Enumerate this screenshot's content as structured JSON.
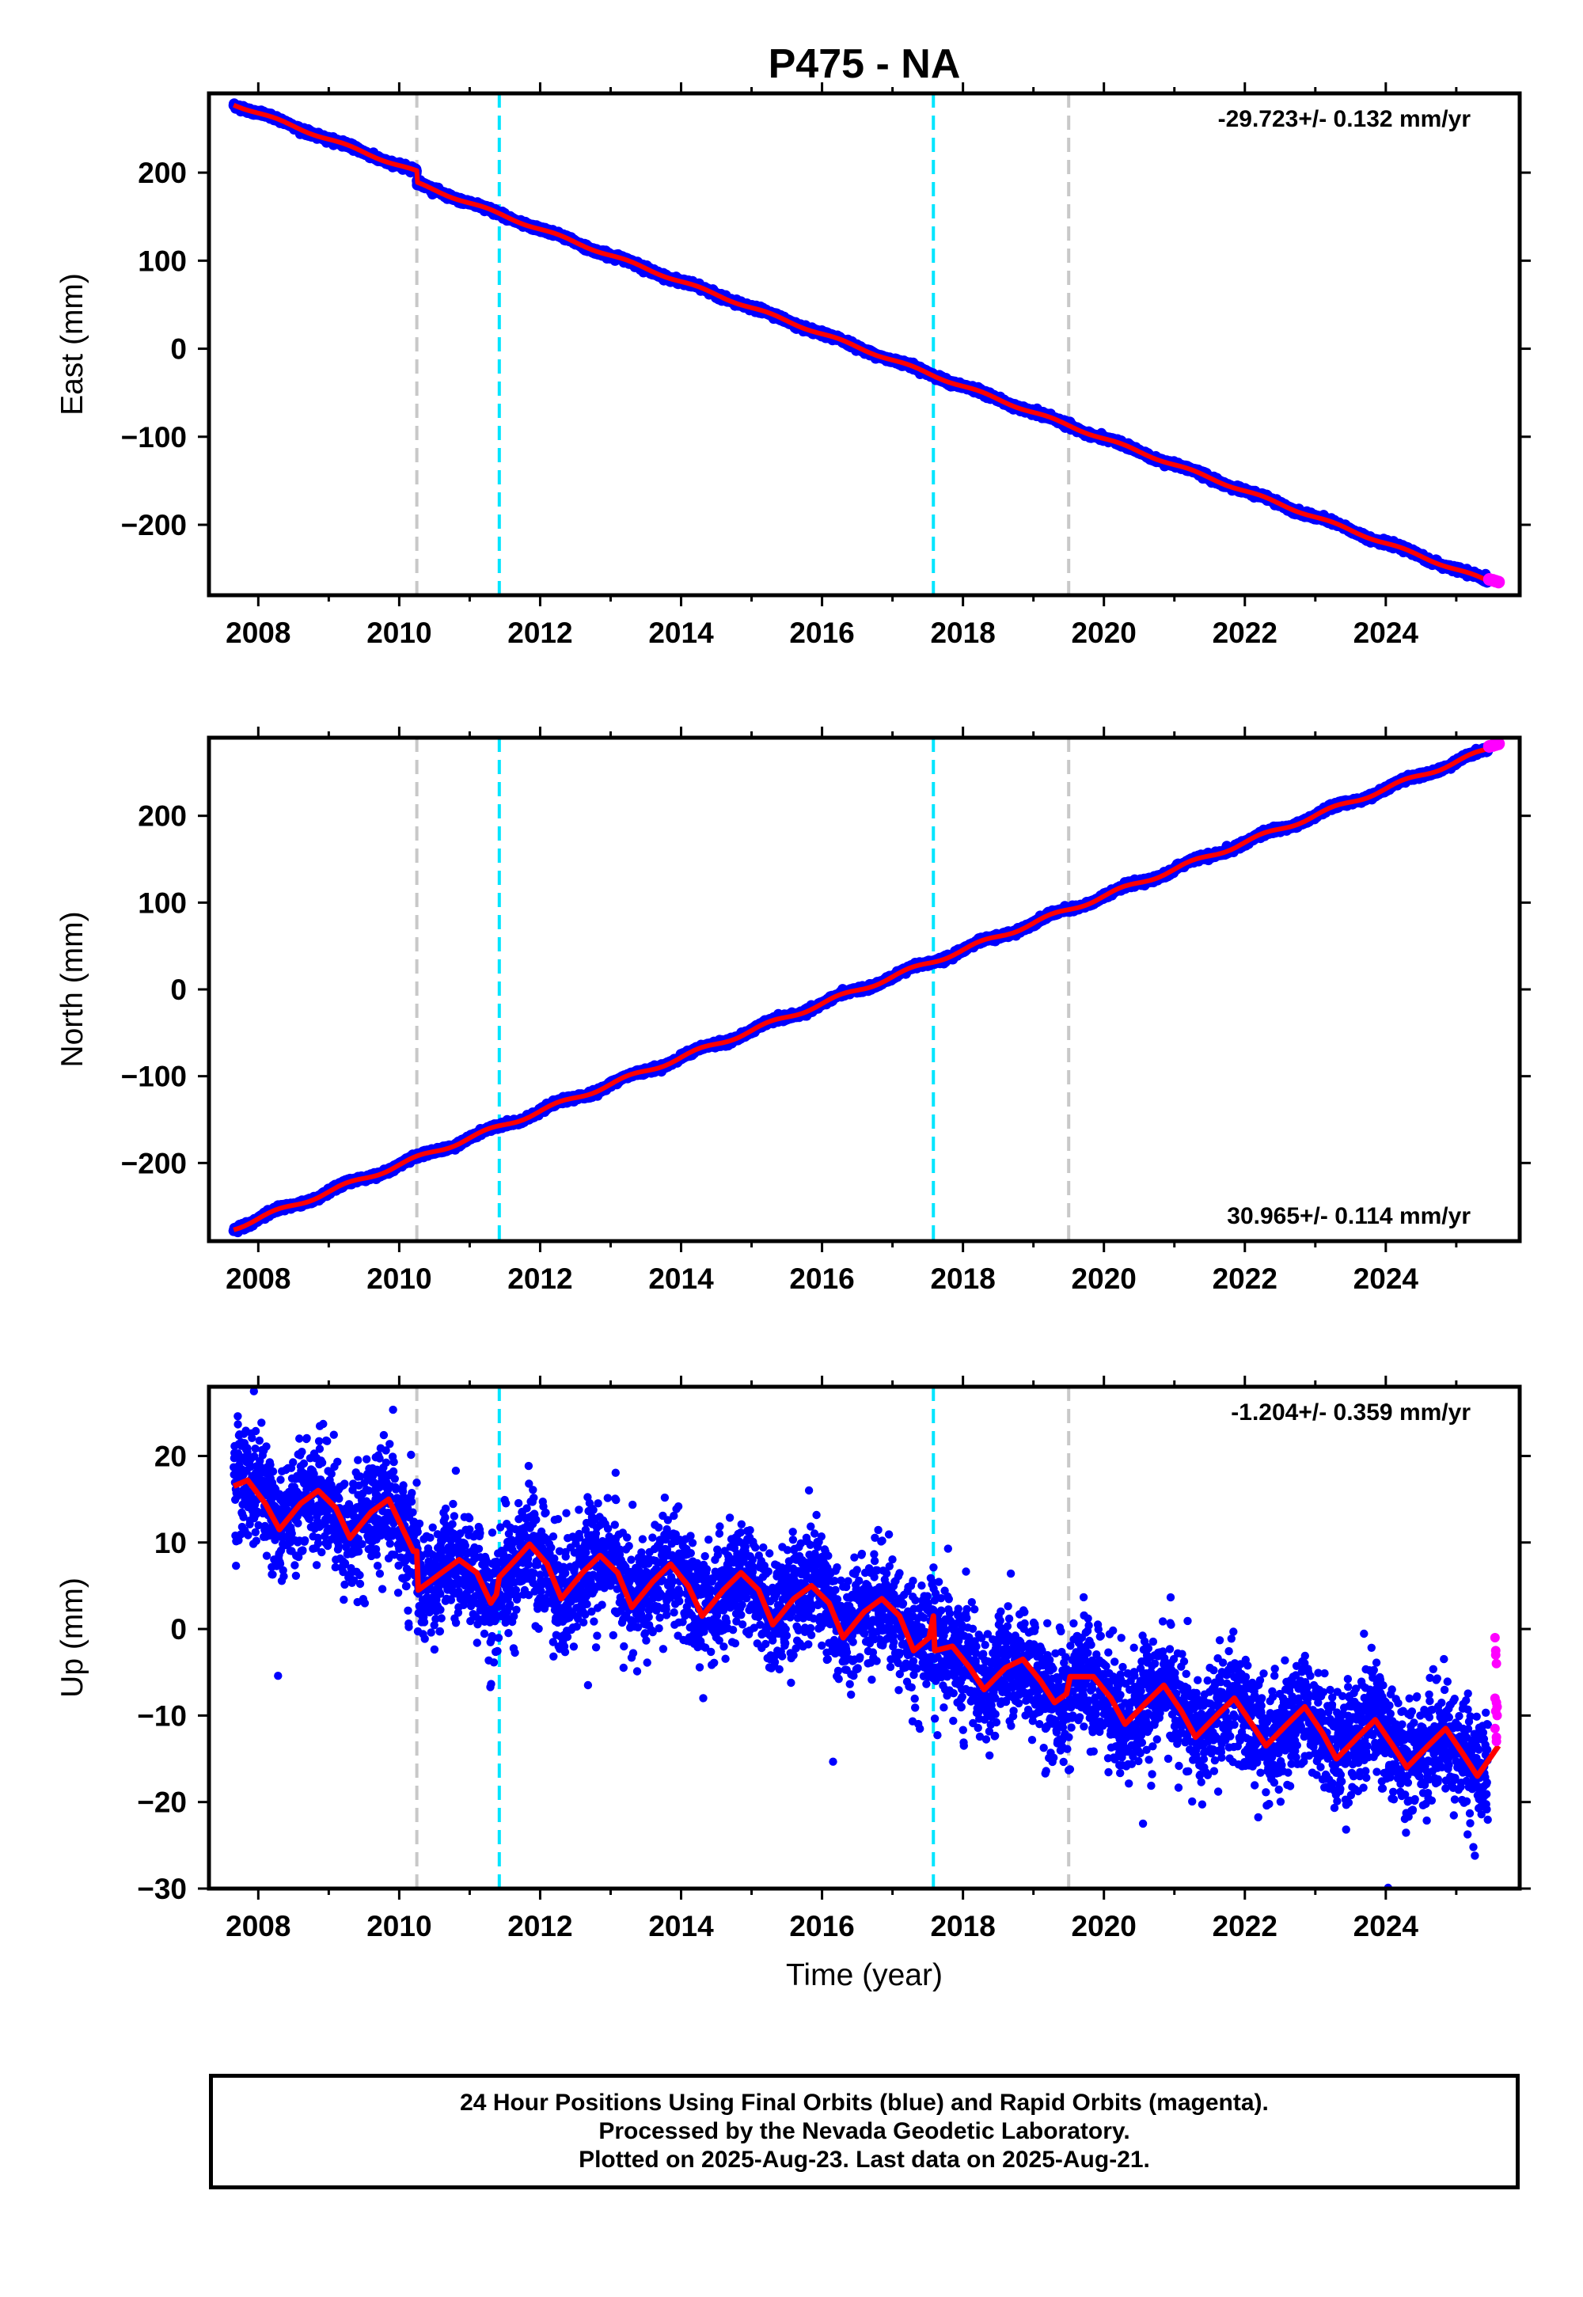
{
  "title": "P475 - NA",
  "colors": {
    "final": "#0000ff",
    "rapid": "#ff00ff",
    "model": "#ff0000",
    "break_gray": "#c8c8c8",
    "break_cyan": "#00e5ff"
  },
  "chart_data": [
    {
      "type": "scatter",
      "component": "east",
      "ylabel": "East (mm)",
      "xlim": [
        2007.3,
        2025.9
      ],
      "ylim": [
        -280,
        290
      ],
      "yticks": [
        -200,
        -100,
        0,
        100,
        200
      ],
      "xticks": [
        2008,
        2010,
        2012,
        2014,
        2016,
        2018,
        2020,
        2022,
        2024
      ],
      "rate_label": "-29.723+/- 0.132 mm/yr",
      "rate_position": "top-right",
      "rate": -29.723,
      "rate_sigma": 0.132,
      "start": {
        "t": 2007.65,
        "y": 278
      },
      "steps": [
        {
          "t": 2010.25,
          "dy": -13
        }
      ],
      "annual_amp": 1.5,
      "final_points": {
        "start": 2007.65,
        "end": 2025.45,
        "noise": 1.5
      },
      "rapid_points": {
        "t": [
          2025.47,
          2025.52,
          2025.56,
          2025.6
        ],
        "y": [
          -262,
          -263,
          -264,
          -265
        ]
      }
    },
    {
      "type": "scatter",
      "component": "north",
      "ylabel": "North (mm)",
      "xlim": [
        2007.3,
        2025.9
      ],
      "ylim": [
        -290,
        290
      ],
      "yticks": [
        -200,
        -100,
        0,
        100,
        200
      ],
      "xticks": [
        2008,
        2010,
        2012,
        2014,
        2016,
        2018,
        2020,
        2022,
        2024
      ],
      "rate_label": "30.965+/- 0.114 mm/yr",
      "rate_position": "bottom-right",
      "rate": 30.965,
      "rate_sigma": 0.114,
      "start": {
        "t": 2007.65,
        "y": -275
      },
      "steps": [],
      "annual_amp": 2.5,
      "final_points": {
        "start": 2007.65,
        "end": 2025.45,
        "noise": 1.5
      },
      "rapid_points": {
        "t": [
          2025.47,
          2025.52,
          2025.56,
          2025.6
        ],
        "y": [
          280,
          281,
          282,
          283
        ]
      }
    },
    {
      "type": "scatter",
      "component": "up",
      "ylabel": "Up (mm)",
      "xlabel": "Time (year)",
      "xlim": [
        2007.3,
        2025.9
      ],
      "ylim": [
        -30,
        28
      ],
      "yticks": [
        -30,
        -20,
        -10,
        0,
        10,
        20
      ],
      "xticks": [
        2008,
        2010,
        2012,
        2014,
        2016,
        2018,
        2020,
        2022,
        2024
      ],
      "rate_label": "-1.204+/- 0.359 mm/yr",
      "rate_position": "top-right",
      "rate": -1.204,
      "rate_sigma": 0.359,
      "model_knots": [
        [
          2007.65,
          16.5
        ],
        [
          2007.85,
          17.2
        ],
        [
          2008.1,
          14.5
        ],
        [
          2008.3,
          11.5
        ],
        [
          2008.6,
          14.5
        ],
        [
          2008.85,
          16.0
        ],
        [
          2009.1,
          14.0
        ],
        [
          2009.3,
          10.5
        ],
        [
          2009.6,
          13.5
        ],
        [
          2009.85,
          15.0
        ],
        [
          2010.2,
          9.0
        ],
        [
          2010.25,
          9.0
        ],
        [
          2010.27,
          4.5
        ],
        [
          2010.6,
          6.5
        ],
        [
          2010.85,
          8.0
        ],
        [
          2011.1,
          6.5
        ],
        [
          2011.3,
          3.0
        ],
        [
          2011.38,
          4.0
        ],
        [
          2011.42,
          6.0
        ],
        [
          2011.65,
          8.0
        ],
        [
          2011.85,
          9.8
        ],
        [
          2012.1,
          7.5
        ],
        [
          2012.3,
          3.5
        ],
        [
          2012.6,
          6.5
        ],
        [
          2012.85,
          8.5
        ],
        [
          2013.1,
          6.5
        ],
        [
          2013.3,
          2.5
        ],
        [
          2013.6,
          5.5
        ],
        [
          2013.85,
          7.5
        ],
        [
          2014.1,
          5.0
        ],
        [
          2014.3,
          1.5
        ],
        [
          2014.6,
          4.5
        ],
        [
          2014.85,
          6.5
        ],
        [
          2015.1,
          4.5
        ],
        [
          2015.3,
          0.5
        ],
        [
          2015.6,
          3.5
        ],
        [
          2015.85,
          5.0
        ],
        [
          2016.1,
          3.0
        ],
        [
          2016.3,
          -1.0
        ],
        [
          2016.6,
          2.0
        ],
        [
          2016.85,
          3.5
        ],
        [
          2017.1,
          1.5
        ],
        [
          2017.3,
          -2.5
        ],
        [
          2017.52,
          -1.0
        ],
        [
          2017.58,
          1.5
        ],
        [
          2017.6,
          -2.5
        ],
        [
          2017.85,
          -2.0
        ],
        [
          2018.1,
          -4.5
        ],
        [
          2018.3,
          -7.0
        ],
        [
          2018.6,
          -4.5
        ],
        [
          2018.85,
          -3.5
        ],
        [
          2019.1,
          -6.0
        ],
        [
          2019.3,
          -8.5
        ],
        [
          2019.47,
          -7.5
        ],
        [
          2019.52,
          -5.5
        ],
        [
          2019.85,
          -5.5
        ],
        [
          2020.1,
          -8.0
        ],
        [
          2020.3,
          -11.0
        ],
        [
          2020.6,
          -8.5
        ],
        [
          2020.85,
          -6.5
        ],
        [
          2021.1,
          -9.5
        ],
        [
          2021.3,
          -12.5
        ],
        [
          2021.6,
          -10.0
        ],
        [
          2021.85,
          -8.0
        ],
        [
          2022.1,
          -11.0
        ],
        [
          2022.3,
          -13.5
        ],
        [
          2022.6,
          -11.0
        ],
        [
          2022.85,
          -9.0
        ],
        [
          2023.1,
          -12.0
        ],
        [
          2023.3,
          -15.0
        ],
        [
          2023.6,
          -12.5
        ],
        [
          2023.85,
          -10.5
        ],
        [
          2024.1,
          -13.5
        ],
        [
          2024.3,
          -16.0
        ],
        [
          2024.6,
          -13.5
        ],
        [
          2024.85,
          -11.5
        ],
        [
          2025.1,
          -14.5
        ],
        [
          2025.3,
          -17.0
        ],
        [
          2025.6,
          -13.5
        ]
      ],
      "final_points": {
        "start": 2007.65,
        "end": 2025.45,
        "noise": 3.2
      },
      "rapid_points": {
        "t": [
          2025.55,
          2025.56,
          2025.57,
          2025.55,
          2025.57,
          2025.56,
          2025.58,
          2025.55,
          2025.57,
          2025.56,
          2025.58,
          2025.57
        ],
        "y": [
          -1.0,
          -2.5,
          -4.0,
          -8.0,
          -8.5,
          -9.5,
          -10.0,
          -11.5,
          -12.5,
          -3.0,
          -9.0,
          -13.0
        ]
      }
    }
  ],
  "breaks": {
    "gray": [
      2010.25,
      2019.5
    ],
    "cyan": [
      2011.42,
      2017.58
    ]
  },
  "footer": {
    "line1": "24 Hour Positions Using Final Orbits (blue) and Rapid Orbits (magenta).",
    "line2": "Processed by the Nevada Geodetic Laboratory.",
    "line3": "Plotted on 2025-Aug-23. Last data on 2025-Aug-21."
  }
}
